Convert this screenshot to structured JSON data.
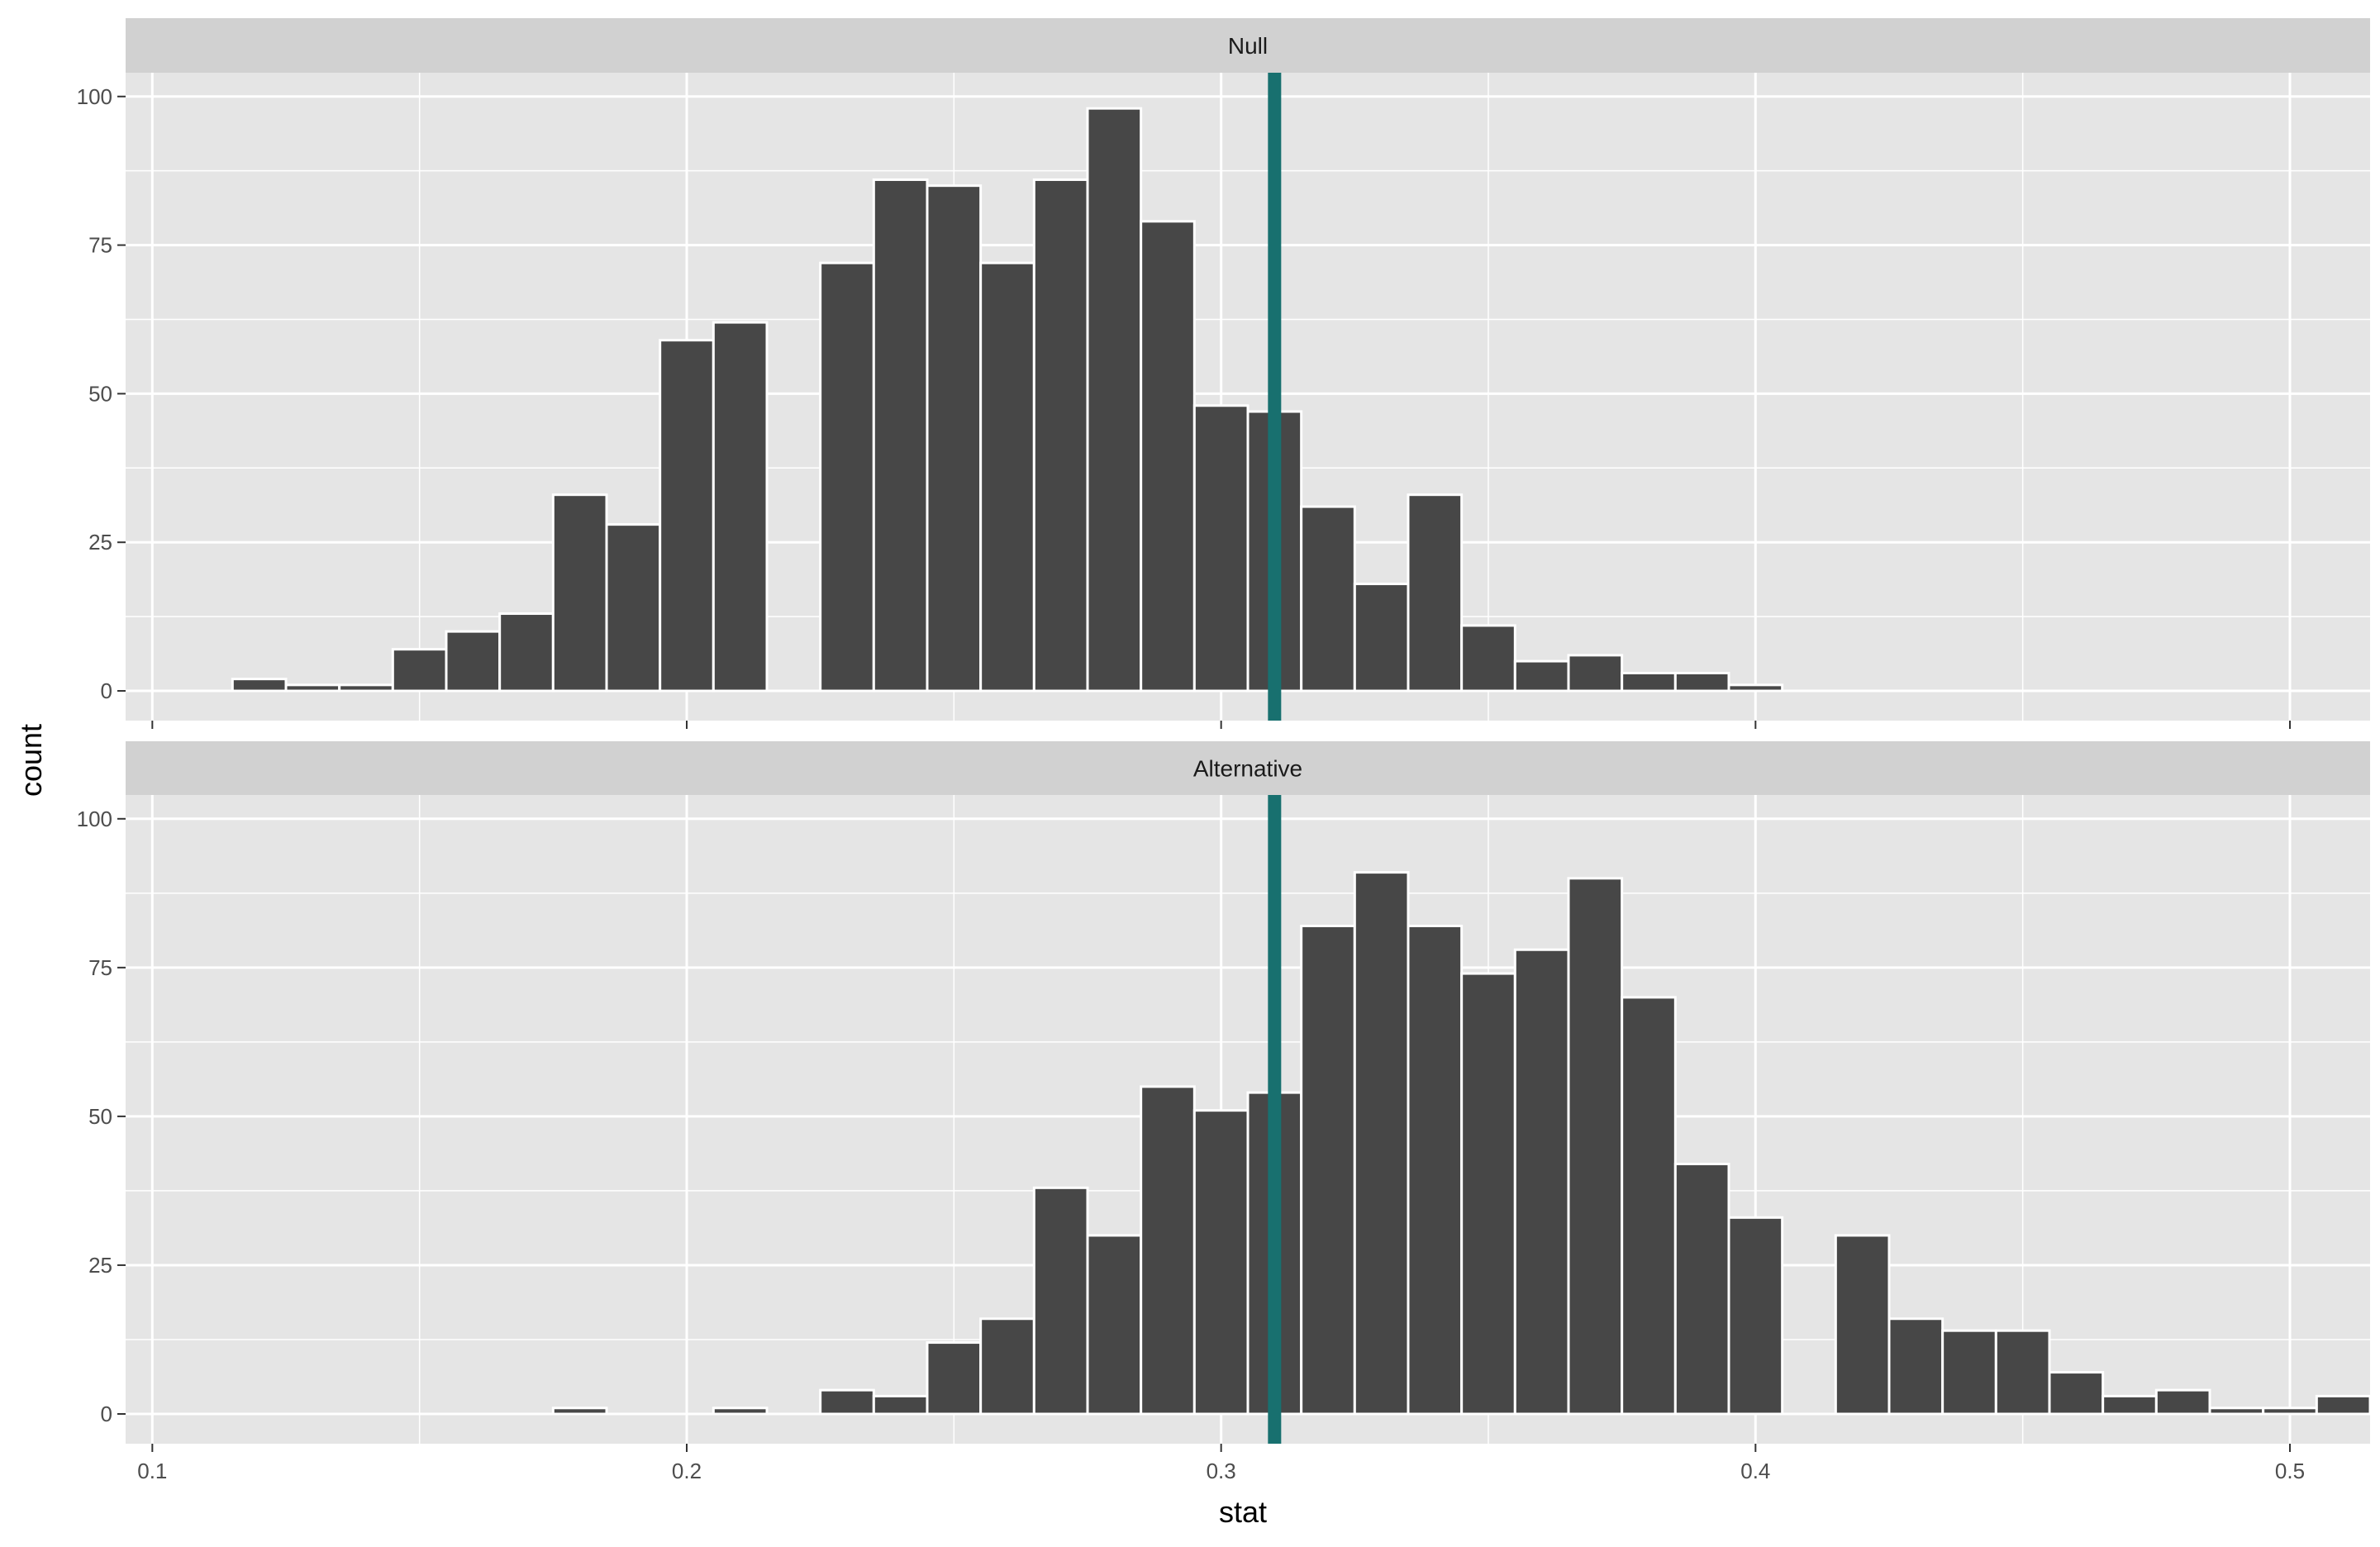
{
  "chart_data": {
    "type": "bar",
    "xlabel": "stat",
    "ylabel": "count",
    "xlim": [
      0.095,
      0.515
    ],
    "ylim": [
      -5,
      104
    ],
    "x_ticks": [
      0.1,
      0.2,
      0.3,
      0.4,
      0.5
    ],
    "x_tick_labels": [
      "0.1",
      "0.2",
      "0.3",
      "0.4",
      "0.5"
    ],
    "y_ticks": [
      0,
      25,
      50,
      75,
      100
    ],
    "y_tick_labels": [
      "0",
      "25",
      "50",
      "75",
      "100"
    ],
    "grid": true,
    "colors": {
      "panel": "#e5e5e5",
      "grid": "#ffffff",
      "strip": "#d1d1d1",
      "bar_fill": "#474747",
      "bar_outline": "#ffffff",
      "reference_line": "#18706f"
    },
    "reference_line_x": 0.31,
    "panels": [
      {
        "strip": "Null",
        "bins": [
          {
            "x0": 0.115,
            "x1": 0.125,
            "count": 2
          },
          {
            "x0": 0.125,
            "x1": 0.135,
            "count": 1
          },
          {
            "x0": 0.135,
            "x1": 0.145,
            "count": 1
          },
          {
            "x0": 0.145,
            "x1": 0.155,
            "count": 7
          },
          {
            "x0": 0.155,
            "x1": 0.165,
            "count": 10
          },
          {
            "x0": 0.165,
            "x1": 0.175,
            "count": 13
          },
          {
            "x0": 0.175,
            "x1": 0.185,
            "count": 33
          },
          {
            "x0": 0.185,
            "x1": 0.195,
            "count": 28
          },
          {
            "x0": 0.195,
            "x1": 0.205,
            "count": 59
          },
          {
            "x0": 0.205,
            "x1": 0.215,
            "count": 62
          },
          {
            "x0": 0.225,
            "x1": 0.235,
            "count": 72
          },
          {
            "x0": 0.235,
            "x1": 0.245,
            "count": 86
          },
          {
            "x0": 0.245,
            "x1": 0.255,
            "count": 85
          },
          {
            "x0": 0.255,
            "x1": 0.265,
            "count": 72
          },
          {
            "x0": 0.265,
            "x1": 0.275,
            "count": 86
          },
          {
            "x0": 0.275,
            "x1": 0.285,
            "count": 98
          },
          {
            "x0": 0.285,
            "x1": 0.295,
            "count": 79
          },
          {
            "x0": 0.295,
            "x1": 0.305,
            "count": 48
          },
          {
            "x0": 0.305,
            "x1": 0.315,
            "count": 47
          },
          {
            "x0": 0.315,
            "x1": 0.325,
            "count": 31
          },
          {
            "x0": 0.325,
            "x1": 0.335,
            "count": 18
          },
          {
            "x0": 0.335,
            "x1": 0.345,
            "count": 33
          },
          {
            "x0": 0.345,
            "x1": 0.355,
            "count": 11
          },
          {
            "x0": 0.355,
            "x1": 0.365,
            "count": 5
          },
          {
            "x0": 0.365,
            "x1": 0.375,
            "count": 6
          },
          {
            "x0": 0.375,
            "x1": 0.385,
            "count": 3
          },
          {
            "x0": 0.385,
            "x1": 0.395,
            "count": 3
          },
          {
            "x0": 0.395,
            "x1": 0.405,
            "count": 1
          }
        ]
      },
      {
        "strip": "Alternative",
        "bins": [
          {
            "x0": 0.175,
            "x1": 0.185,
            "count": 1
          },
          {
            "x0": 0.205,
            "x1": 0.215,
            "count": 1
          },
          {
            "x0": 0.225,
            "x1": 0.235,
            "count": 4
          },
          {
            "x0": 0.235,
            "x1": 0.245,
            "count": 3
          },
          {
            "x0": 0.245,
            "x1": 0.255,
            "count": 12
          },
          {
            "x0": 0.255,
            "x1": 0.265,
            "count": 16
          },
          {
            "x0": 0.265,
            "x1": 0.275,
            "count": 38
          },
          {
            "x0": 0.275,
            "x1": 0.285,
            "count": 30
          },
          {
            "x0": 0.285,
            "x1": 0.295,
            "count": 55
          },
          {
            "x0": 0.295,
            "x1": 0.305,
            "count": 51
          },
          {
            "x0": 0.305,
            "x1": 0.315,
            "count": 54
          },
          {
            "x0": 0.315,
            "x1": 0.325,
            "count": 82
          },
          {
            "x0": 0.325,
            "x1": 0.335,
            "count": 91
          },
          {
            "x0": 0.335,
            "x1": 0.345,
            "count": 82
          },
          {
            "x0": 0.345,
            "x1": 0.355,
            "count": 74
          },
          {
            "x0": 0.355,
            "x1": 0.365,
            "count": 78
          },
          {
            "x0": 0.365,
            "x1": 0.375,
            "count": 90
          },
          {
            "x0": 0.375,
            "x1": 0.385,
            "count": 70
          },
          {
            "x0": 0.385,
            "x1": 0.395,
            "count": 42
          },
          {
            "x0": 0.395,
            "x1": 0.405,
            "count": 33
          },
          {
            "x0": 0.415,
            "x1": 0.425,
            "count": 30
          },
          {
            "x0": 0.425,
            "x1": 0.435,
            "count": 16
          },
          {
            "x0": 0.435,
            "x1": 0.445,
            "count": 14
          },
          {
            "x0": 0.445,
            "x1": 0.455,
            "count": 14
          },
          {
            "x0": 0.455,
            "x1": 0.465,
            "count": 7
          },
          {
            "x0": 0.465,
            "x1": 0.475,
            "count": 3
          },
          {
            "x0": 0.475,
            "x1": 0.485,
            "count": 4
          },
          {
            "x0": 0.485,
            "x1": 0.495,
            "count": 1
          },
          {
            "x0": 0.495,
            "x1": 0.505,
            "count": 1
          },
          {
            "x0": 0.505,
            "x1": 0.515,
            "count": 3
          }
        ]
      }
    ]
  }
}
